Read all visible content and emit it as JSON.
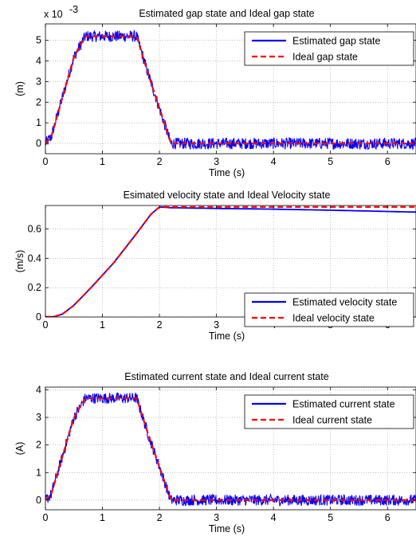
{
  "chart_data": [
    {
      "type": "line",
      "title": "Estimated gap state and Ideal gap state",
      "xlabel": "Time (s)",
      "ylabel": "(m)",
      "exponent_label": "x 10",
      "exponent_power": "-3",
      "xlim": [
        0,
        6.5
      ],
      "ylim": [
        -0.5,
        5.8
      ],
      "xticks": [
        "0",
        "1",
        "2",
        "3",
        "4",
        "5",
        "6"
      ],
      "yticks": [
        "0",
        "1",
        "2",
        "3",
        "4",
        "5"
      ],
      "ytick_values": [
        0,
        1,
        2,
        3,
        4,
        5
      ],
      "grid": true,
      "legend_position": "top-right",
      "series": [
        {
          "name": "Estimated gap state",
          "color": "#0000ff",
          "style": "solid",
          "noise": 0.28,
          "x": [
            0,
            0.1,
            0.5,
            0.7,
            1.6,
            1.8,
            2.2,
            6.5
          ],
          "y": [
            0,
            0.3,
            4.2,
            5.2,
            5.2,
            3.4,
            0,
            0
          ]
        },
        {
          "name": "Ideal gap state",
          "color": "#ff0000",
          "style": "dashed",
          "x": [
            0,
            0.1,
            0.5,
            0.7,
            1.6,
            1.8,
            2.2,
            6.5
          ],
          "y": [
            0,
            0.3,
            4.2,
            5.2,
            5.2,
            3.4,
            0,
            0
          ]
        }
      ]
    },
    {
      "type": "line",
      "title": "Esimated velocity state and Ideal Velocity state",
      "xlabel": "Time (s)",
      "ylabel": "(m/s)",
      "xlim": [
        0,
        6.5
      ],
      "ylim": [
        0,
        0.76
      ],
      "xticks": [
        "0",
        "1",
        "2",
        "3",
        "4",
        "5",
        "6"
      ],
      "yticks": [
        "0",
        "0.2",
        "0.4",
        "0.6"
      ],
      "ytick_values": [
        0,
        0.2,
        0.4,
        0.6
      ],
      "grid": true,
      "legend_position": "bottom-right",
      "series": [
        {
          "name": "Estimated velocity state",
          "color": "#0000ff",
          "style": "solid",
          "noise": 0,
          "x": [
            0,
            0.15,
            0.3,
            0.5,
            0.8,
            1.2,
            1.6,
            1.85,
            2.0,
            2.2,
            3.0,
            4.0,
            5.0,
            6.5
          ],
          "y": [
            0,
            0.002,
            0.02,
            0.08,
            0.2,
            0.37,
            0.57,
            0.7,
            0.75,
            0.745,
            0.74,
            0.735,
            0.728,
            0.715
          ]
        },
        {
          "name": "Ideal velocity state",
          "color": "#ff0000",
          "style": "dashed",
          "x": [
            0,
            0.15,
            0.3,
            0.5,
            0.8,
            1.2,
            1.6,
            1.85,
            2.0,
            2.2,
            3.0,
            4.0,
            5.0,
            6.5
          ],
          "y": [
            0,
            0.002,
            0.02,
            0.08,
            0.2,
            0.37,
            0.57,
            0.7,
            0.75,
            0.75,
            0.75,
            0.75,
            0.75,
            0.75
          ]
        }
      ]
    },
    {
      "type": "line",
      "title": "Estimated current state and Ideal current state",
      "xlabel": "Time (s)",
      "ylabel": "(A)",
      "xlim": [
        0,
        6.5
      ],
      "ylim": [
        -0.35,
        4.1
      ],
      "xticks": [
        "0",
        "1",
        "2",
        "3",
        "4",
        "5",
        "6"
      ],
      "yticks": [
        "0",
        "1",
        "2",
        "3",
        "4"
      ],
      "ytick_values": [
        0,
        1,
        2,
        3,
        4
      ],
      "grid": true,
      "legend_position": "top-right",
      "series": [
        {
          "name": "Estimated current state",
          "color": "#0000ff",
          "style": "solid",
          "noise": 0.2,
          "x": [
            0,
            0.1,
            0.5,
            0.7,
            1.6,
            1.8,
            2.2,
            6.5
          ],
          "y": [
            0,
            0.2,
            3.0,
            3.7,
            3.7,
            2.4,
            0,
            0
          ]
        },
        {
          "name": "Ideal current state",
          "color": "#ff0000",
          "style": "dashed",
          "x": [
            0,
            0.1,
            0.5,
            0.7,
            1.6,
            1.8,
            2.2,
            6.5
          ],
          "y": [
            0,
            0.2,
            3.0,
            3.7,
            3.7,
            2.4,
            0,
            0
          ]
        }
      ]
    }
  ]
}
